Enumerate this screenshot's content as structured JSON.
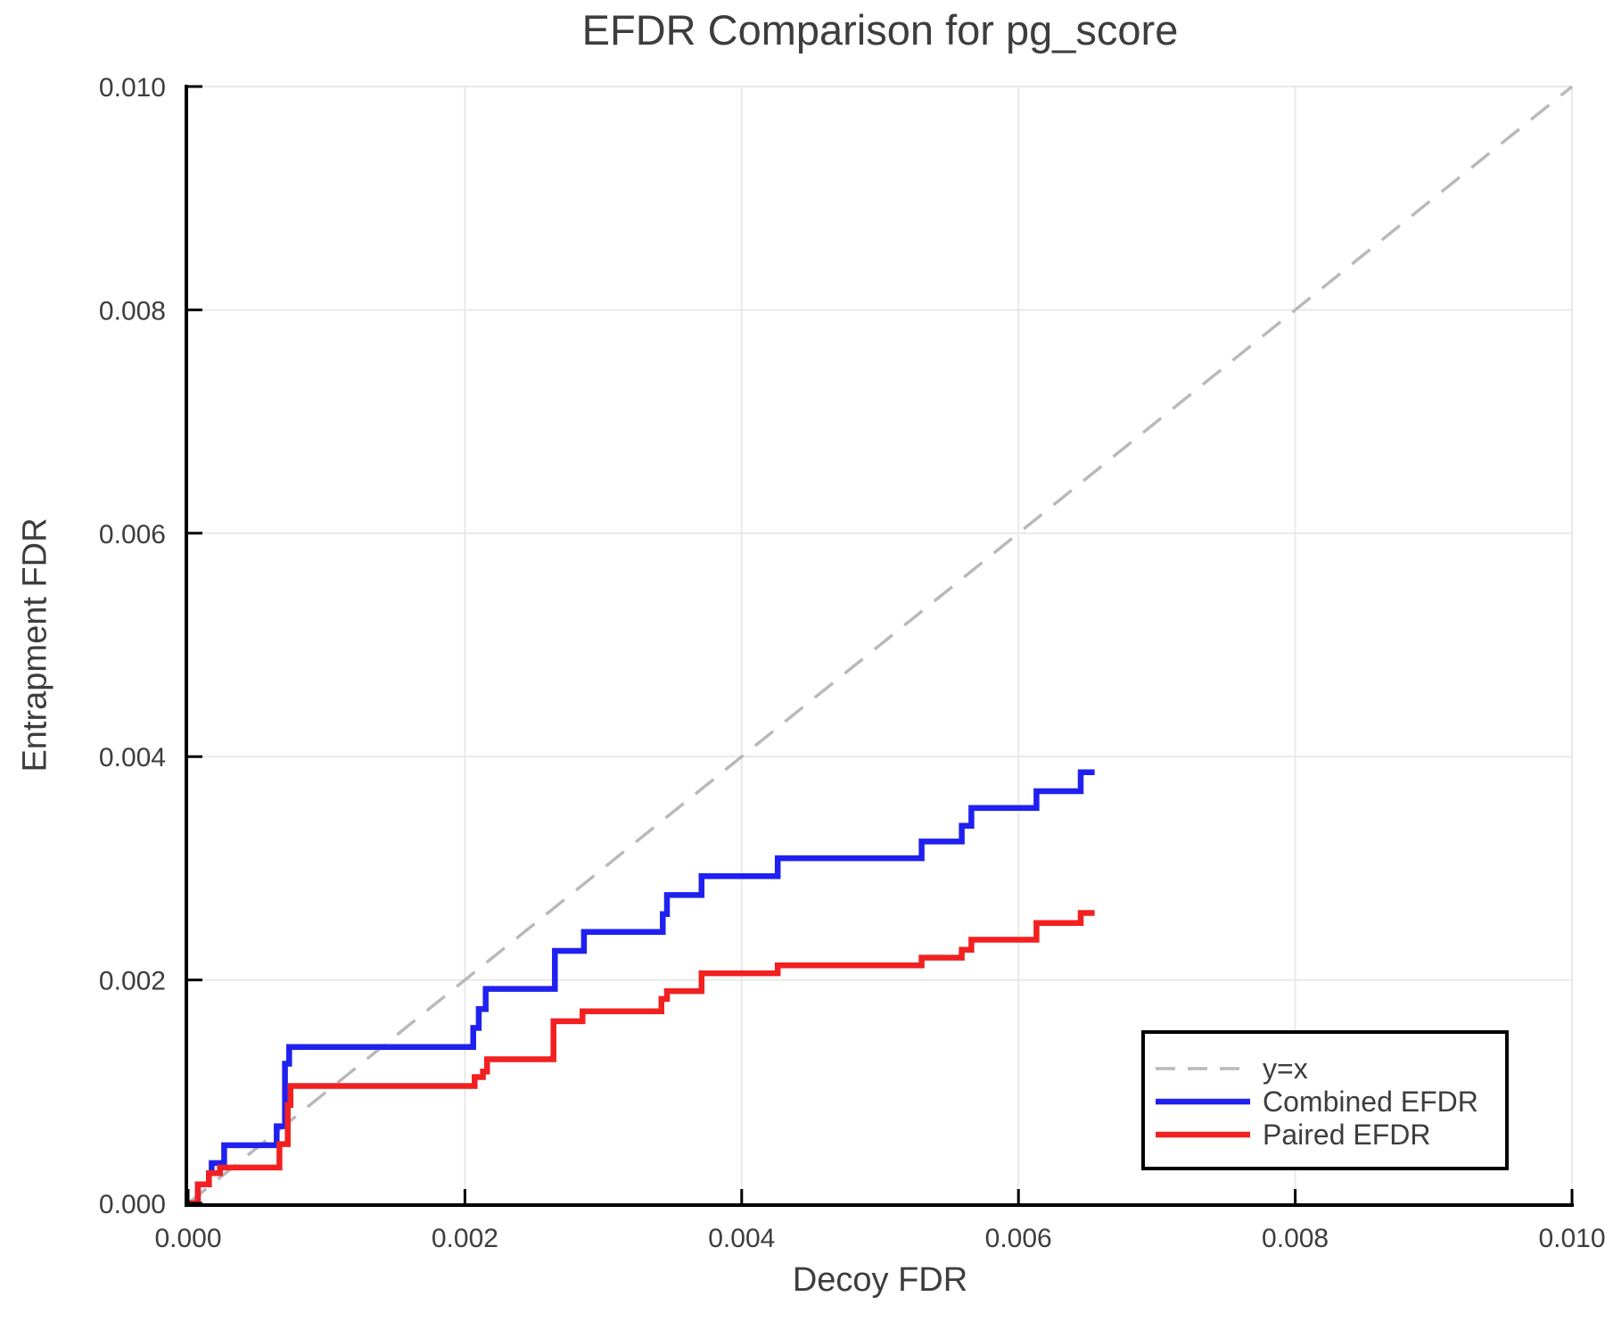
{
  "chart_data": {
    "type": "line",
    "title": "EFDR Comparison for pg_score",
    "xlabel": "Decoy FDR",
    "ylabel": "Entrapment FDR",
    "xlim": [
      0.0,
      0.01
    ],
    "ylim": [
      0.0,
      0.01
    ],
    "xticks": [
      0.0,
      0.002,
      0.004,
      0.006,
      0.008,
      0.01
    ],
    "yticks": [
      0.0,
      0.002,
      0.004,
      0.006,
      0.008,
      0.01
    ],
    "xtick_labels": [
      "0.000",
      "0.002",
      "0.004",
      "0.006",
      "0.008",
      "0.010"
    ],
    "ytick_labels": [
      "0.000",
      "0.002",
      "0.004",
      "0.006",
      "0.008",
      "0.010"
    ],
    "grid": true,
    "legend_position": "lower right",
    "style": {
      "background": "#ffffff",
      "grid_color": "#e9e9e9",
      "spine_color": "#000000",
      "text_color": "#3d3d3d",
      "legend_border": "#000000",
      "legend_fill": "#ffffff"
    },
    "reference_line": {
      "label": "y=x",
      "color": "#b9b9b9",
      "dashed": true,
      "from": [
        0.0,
        0.0
      ],
      "to": [
        0.01,
        0.01
      ]
    },
    "series": [
      {
        "name": "Combined EFDR",
        "color": "#2020f0",
        "interpolation": "step-post",
        "x_end": 0.00655,
        "points": [
          [
            0.0,
            0.0
          ],
          [
            7e-05,
            0.00017
          ],
          [
            0.00015,
            0.00027
          ],
          [
            0.00017,
            0.00036
          ],
          [
            0.00026,
            0.00052
          ],
          [
            0.00064,
            0.00069
          ],
          [
            0.0007,
            0.00125
          ],
          [
            0.00073,
            0.0014
          ],
          [
            0.00206,
            0.00157
          ],
          [
            0.0021,
            0.00174
          ],
          [
            0.00215,
            0.00192
          ],
          [
            0.00265,
            0.00226
          ],
          [
            0.00286,
            0.00243
          ],
          [
            0.00343,
            0.00259
          ],
          [
            0.00346,
            0.00276
          ],
          [
            0.00371,
            0.00293
          ],
          [
            0.00426,
            0.00309
          ],
          [
            0.0053,
            0.00324
          ],
          [
            0.00559,
            0.00338
          ],
          [
            0.00566,
            0.00354
          ],
          [
            0.00613,
            0.00369
          ],
          [
            0.00645,
            0.00386
          ]
        ]
      },
      {
        "name": "Paired EFDR",
        "color": "#f22020",
        "interpolation": "step-post",
        "x_end": 0.00655,
        "points": [
          [
            0.0,
            0.0
          ],
          [
            7e-05,
            0.00017
          ],
          [
            0.00015,
            0.00027
          ],
          [
            0.00023,
            0.00032
          ],
          [
            0.00066,
            0.00053
          ],
          [
            0.00072,
            0.00088
          ],
          [
            0.00074,
            0.00105
          ],
          [
            0.00207,
            0.00113
          ],
          [
            0.00213,
            0.00118
          ],
          [
            0.00216,
            0.00129
          ],
          [
            0.00264,
            0.00163
          ],
          [
            0.00285,
            0.00172
          ],
          [
            0.00342,
            0.00183
          ],
          [
            0.00346,
            0.0019
          ],
          [
            0.00371,
            0.00206
          ],
          [
            0.00426,
            0.00213
          ],
          [
            0.0053,
            0.0022
          ],
          [
            0.00559,
            0.00227
          ],
          [
            0.00566,
            0.00236
          ],
          [
            0.00613,
            0.00251
          ],
          [
            0.00645,
            0.0026
          ]
        ]
      }
    ],
    "legend_entries": [
      {
        "label": "y=x",
        "color": "#b9b9b9",
        "dashed": true
      },
      {
        "label": "Combined EFDR",
        "color": "#2020f0",
        "dashed": false
      },
      {
        "label": "Paired EFDR",
        "color": "#f22020",
        "dashed": false
      }
    ]
  }
}
